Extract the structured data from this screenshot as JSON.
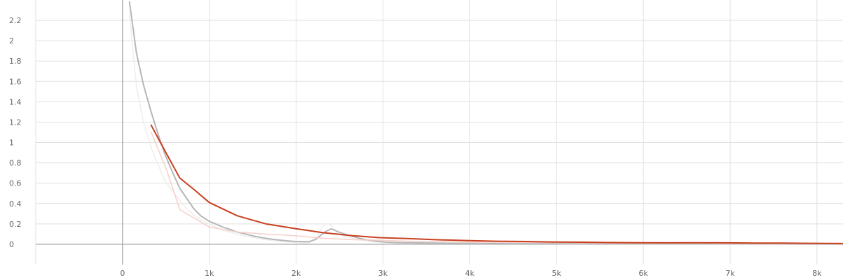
{
  "chart_data": {
    "type": "line",
    "title": "",
    "xlabel": "",
    "ylabel": "",
    "xlim": [
      -1000,
      8300
    ],
    "ylim": [
      -0.2,
      2.4
    ],
    "grid": true,
    "x_ticks": [
      {
        "value": 0,
        "label": "0"
      },
      {
        "value": 1000,
        "label": "1k"
      },
      {
        "value": 2000,
        "label": "2k"
      },
      {
        "value": 3000,
        "label": "3k"
      },
      {
        "value": 4000,
        "label": "4k"
      },
      {
        "value": 5000,
        "label": "5k"
      },
      {
        "value": 6000,
        "label": "6k"
      },
      {
        "value": 7000,
        "label": "7k"
      },
      {
        "value": 8000,
        "label": "8k"
      }
    ],
    "y_ticks": [
      {
        "value": 0,
        "label": "0"
      },
      {
        "value": 0.2,
        "label": "0.2"
      },
      {
        "value": 0.4,
        "label": "0.4"
      },
      {
        "value": 0.6,
        "label": "0.6"
      },
      {
        "value": 0.8,
        "label": "0.8"
      },
      {
        "value": 1,
        "label": "1"
      },
      {
        "value": 1.2,
        "label": "1.2"
      },
      {
        "value": 1.4,
        "label": "1.4"
      },
      {
        "value": 1.6,
        "label": "1.6"
      },
      {
        "value": 1.8,
        "label": "1.8"
      },
      {
        "value": 2,
        "label": "2"
      },
      {
        "value": 2.2,
        "label": "2.2"
      }
    ],
    "colors": {
      "raw_gray": "#ededed",
      "smooth_gray": "#b7b7b7",
      "raw_red": "#f6cfc8",
      "smooth_red": "#c7401f"
    },
    "series": [
      {
        "color_key": "raw_gray",
        "x": [
          80,
          160,
          240,
          330,
          410,
          490,
          580,
          660,
          740,
          820,
          900,
          990,
          1070,
          1150,
          1240,
          1320,
          1400,
          1490,
          1570,
          1650,
          1730,
          1820,
          1900,
          1980,
          2070,
          2150,
          2230,
          2300,
          2350,
          2400,
          2440,
          2490,
          2560,
          2640,
          2720,
          2800,
          2880,
          2960,
          3040,
          3200,
          3400,
          3600,
          3800,
          4000,
          4500,
          5000,
          5500,
          6000,
          6500,
          7000,
          7500,
          8000,
          8300
        ],
        "y": [
          2.25,
          1.55,
          1.2,
          0.95,
          0.78,
          0.62,
          0.52,
          0.43,
          0.35,
          0.29,
          0.24,
          0.2,
          0.17,
          0.14,
          0.12,
          0.1,
          0.085,
          0.07,
          0.055,
          0.045,
          0.035,
          0.028,
          0.022,
          0.018,
          0.015,
          0.015,
          0.06,
          0.17,
          0.2,
          0.19,
          0.14,
          0.1,
          0.08,
          0.06,
          0.045,
          0.035,
          0.025,
          0.02,
          0.015,
          0.012,
          0.01,
          0.008,
          0.007,
          0.006,
          0.005,
          0.004,
          0.004,
          0.003,
          0.003,
          0.003,
          0.002,
          0.002,
          0.002
        ]
      },
      {
        "color_key": "smooth_gray",
        "x": [
          80,
          160,
          240,
          330,
          410,
          490,
          580,
          660,
          740,
          820,
          900,
          990,
          1070,
          1150,
          1240,
          1320,
          1400,
          1490,
          1570,
          1650,
          1730,
          1820,
          1900,
          1980,
          2070,
          2150,
          2230,
          2300,
          2350,
          2400,
          2440,
          2490,
          2560,
          2640,
          2720,
          2800,
          2880,
          2960,
          3040,
          3200,
          3400,
          3600,
          3800,
          4000,
          4500,
          5000,
          5500,
          6000,
          6500,
          7000,
          7500,
          8000,
          8300
        ],
        "y": [
          2.38,
          1.88,
          1.57,
          1.3,
          1.08,
          0.88,
          0.7,
          0.55,
          0.45,
          0.35,
          0.28,
          0.23,
          0.2,
          0.17,
          0.145,
          0.12,
          0.105,
          0.085,
          0.07,
          0.058,
          0.048,
          0.04,
          0.033,
          0.028,
          0.025,
          0.025,
          0.05,
          0.1,
          0.13,
          0.15,
          0.14,
          0.12,
          0.1,
          0.08,
          0.06,
          0.045,
          0.035,
          0.027,
          0.02,
          0.016,
          0.013,
          0.011,
          0.009,
          0.008,
          0.006,
          0.005,
          0.004,
          0.004,
          0.003,
          0.003,
          0.003,
          0.002,
          0.002
        ]
      },
      {
        "color_key": "raw_red",
        "x": [
          330,
          500,
          660,
          820,
          1000,
          1320,
          1650,
          1980,
          2300,
          2640,
          2960,
          3300,
          3600,
          4000,
          4300,
          4650,
          4980,
          5300,
          5600,
          5950,
          6300,
          6600,
          6950,
          7300,
          7600,
          7950,
          8300
        ],
        "y": [
          1.1,
          0.75,
          0.34,
          0.26,
          0.17,
          0.12,
          0.1,
          0.085,
          0.06,
          0.045,
          0.04,
          0.03,
          0.025,
          0.022,
          0.02,
          0.018,
          0.015,
          0.014,
          0.012,
          0.012,
          0.01,
          0.012,
          0.01,
          0.009,
          0.008,
          0.007,
          0.006
        ]
      },
      {
        "color_key": "smooth_red",
        "x": [
          330,
          500,
          660,
          820,
          1000,
          1320,
          1650,
          1980,
          2300,
          2640,
          2960,
          3300,
          3600,
          4000,
          4300,
          4650,
          4980,
          5300,
          5600,
          5950,
          6300,
          6600,
          6950,
          7300,
          7600,
          7950,
          8300
        ],
        "y": [
          1.17,
          0.9,
          0.65,
          0.54,
          0.41,
          0.28,
          0.2,
          0.155,
          0.115,
          0.085,
          0.065,
          0.055,
          0.045,
          0.035,
          0.03,
          0.027,
          0.022,
          0.02,
          0.017,
          0.015,
          0.014,
          0.015,
          0.014,
          0.012,
          0.011,
          0.009,
          0.007
        ]
      }
    ]
  }
}
